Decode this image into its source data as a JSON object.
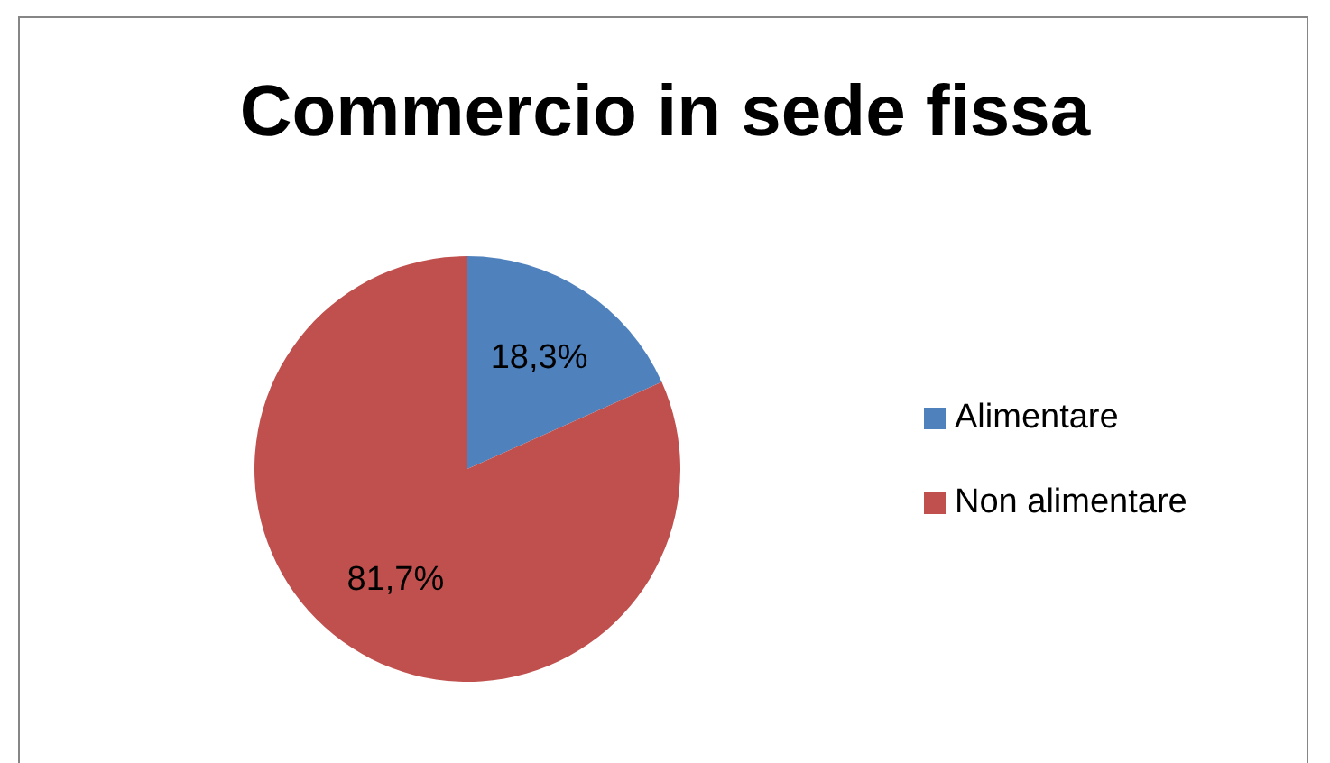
{
  "chart_data": {
    "type": "pie",
    "title": "Commercio in sede fissa",
    "categories": [
      "Alimentare",
      "Non alimentare"
    ],
    "values": [
      18.3,
      81.7
    ],
    "colors": [
      "#4f81bd",
      "#c0504d"
    ],
    "value_labels": [
      "18,3%",
      "81,7%"
    ],
    "legend": "right"
  }
}
